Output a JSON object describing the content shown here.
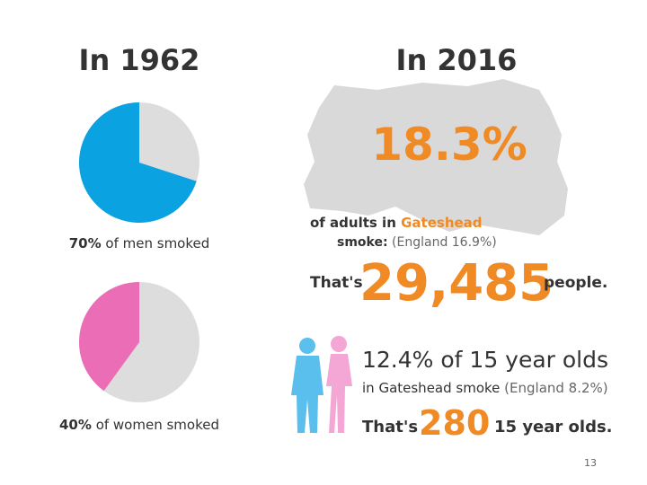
{
  "left": {
    "title": "In 1962",
    "pies": [
      {
        "value": 70,
        "value_label": "70%",
        "label": "of men smoked",
        "color": "#0ba2e2",
        "rest_color": "#dddddd"
      },
      {
        "value": 40,
        "value_label": "40%",
        "label": "of women smoked",
        "color": "#ea6db6",
        "rest_color": "#dddddd"
      }
    ]
  },
  "right": {
    "title": "In 2016",
    "rate": "18.3%",
    "adults_text": "of adults in",
    "place": "Gateshead",
    "smoke": "smoke:",
    "england": "(England 16.9%)",
    "thats": "That's",
    "people_count": "29,485",
    "people": "people.",
    "youth_rate": "12.4% of 15 year olds",
    "youth_text": "in Gateshead smoke",
    "youth_england": "(England 8.2%)",
    "thats_2": "That's",
    "youth_count": "280",
    "youth_unit": "15 year olds."
  },
  "page_number": "13"
}
